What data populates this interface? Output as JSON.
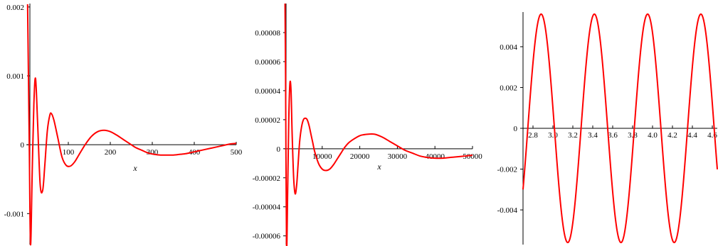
{
  "chart_data": [
    {
      "type": "line",
      "title": "",
      "xlabel": "x",
      "ylabel": "",
      "xlim": [
        0,
        500
      ],
      "ylim": [
        -0.00145,
        0.00205
      ],
      "grid": false,
      "legend": "none",
      "line_color": "#ff0000",
      "x_ticks": [
        100,
        200,
        300,
        400,
        500
      ],
      "x_tick_labels": [
        "100",
        "200",
        "300",
        "400",
        "500"
      ],
      "y_ticks": [
        0.002,
        0.001,
        0,
        -0.001
      ],
      "y_tick_labels": [
        "0.002",
        "0.001",
        "0",
        "-0.001"
      ],
      "series": [
        {
          "x": [
            3,
            7,
            10,
            14,
            18,
            22,
            27,
            33,
            39,
            44,
            50,
            56,
            60,
            66,
            75,
            85,
            95,
            105,
            115,
            125,
            140,
            155,
            170,
            185,
            200,
            215,
            230,
            245,
            260,
            275,
            290,
            305,
            320,
            335,
            350,
            365,
            380,
            395,
            410,
            425,
            440,
            455,
            470,
            485,
            500
          ],
          "y": [
            0.00204,
            0.0,
            -0.00145,
            -0.0004,
            0.0006,
            0.00096,
            0.0003,
            -0.00058,
            -0.00066,
            -0.0003,
            0.0002,
            0.00043,
            0.00045,
            0.00035,
            0.0001,
            -0.00018,
            -0.0003,
            -0.00031,
            -0.00025,
            -0.00015,
            0.0,
            0.00012,
            0.00019,
            0.00021,
            0.00019,
            0.00014,
            8e-05,
            2e-05,
            -4e-05,
            -8e-05,
            -0.00012,
            -0.00014,
            -0.00015,
            -0.00015,
            -0.00015,
            -0.00014,
            -0.00013,
            -0.00011,
            -9e-05,
            -7e-05,
            -5e-05,
            -3e-05,
            -1e-05,
            1e-05,
            2e-05
          ]
        }
      ]
    },
    {
      "type": "line",
      "title": "",
      "xlabel": "x",
      "ylabel": "",
      "xlim": [
        0,
        50000
      ],
      "ylim": [
        -6.6e-05,
        0.0001
      ],
      "grid": false,
      "legend": "none",
      "line_color": "#ff0000",
      "x_ticks": [
        10000,
        20000,
        30000,
        40000,
        50000
      ],
      "x_tick_labels": [
        "10000",
        "20000",
        "30000",
        "40000",
        "50000"
      ],
      "y_ticks": [
        8e-05,
        6e-05,
        4e-05,
        2e-05,
        0,
        -2e-05,
        -4e-05,
        -6e-05
      ],
      "y_tick_labels": [
        "0.00008",
        "0.00006",
        "0.00004",
        "0.00002",
        "0",
        "-0.00002",
        "-0.00004",
        "-0.00006"
      ],
      "series": [
        {
          "x": [
            100,
            250,
            500,
            800,
            1100,
            1400,
            1700,
            2000,
            2400,
            2800,
            3200,
            3600,
            4000,
            4500,
            5000,
            5500,
            6000,
            6500,
            7000,
            7500,
            8000,
            9000,
            10000,
            11000,
            12000,
            13000,
            14000,
            15000,
            16000,
            17000,
            18000,
            20000,
            22000,
            24000,
            26000,
            28000,
            30000,
            32000,
            34000,
            36000,
            38000,
            40000,
            42000,
            44000,
            46000,
            48000,
            50000
          ],
          "y": [
            0.0001,
            5e-05,
            -6.6e-05,
            -3e-05,
            2e-05,
            4.5e-05,
            4e-05,
            1e-05,
            -2e-05,
            -3.1e-05,
            -2.5e-05,
            -1e-05,
            5e-06,
            1.5e-05,
            2e-05,
            2.1e-05,
            2e-05,
            1.6e-05,
            1e-05,
            4e-06,
            -2e-06,
            -1e-05,
            -1.4e-05,
            -1.5e-05,
            -1.4e-05,
            -1.1e-05,
            -7e-06,
            -3e-06,
            1e-06,
            4e-06,
            6e-06,
            9e-06,
            1e-05,
            1e-05,
            8e-06,
            5e-06,
            2e-06,
            -1e-06,
            -3e-06,
            -5e-06,
            -6e-06,
            -6.5e-06,
            -6.5e-06,
            -6e-06,
            -5.5e-06,
            -5e-06,
            -4.5e-06
          ]
        }
      ]
    },
    {
      "type": "line",
      "title": "",
      "xlabel": "",
      "ylabel": "",
      "xlim": [
        2.7,
        4.65
      ],
      "ylim": [
        -0.0057,
        0.0057
      ],
      "grid": false,
      "legend": "none",
      "line_color": "#ff0000",
      "x_ticks": [
        2.8,
        3.0,
        3.2,
        3.4,
        3.6,
        3.8,
        4.0,
        4.2,
        4.4,
        4.6
      ],
      "x_tick_labels": [
        "2.8",
        "3.0",
        "3.2",
        "3.4",
        "3.6",
        "3.8",
        "4.0",
        "4.2",
        "4.4",
        "4.6"
      ],
      "y_ticks": [
        0.004,
        0.002,
        0,
        -0.002,
        -0.004
      ],
      "y_tick_labels": [
        "0.004",
        "0.002",
        "0",
        "-0.002",
        "-0.004"
      ],
      "series": [
        {
          "function": "0.0056*sin(2*pi*(x-2.748)/0.5345)",
          "amplitude": 0.0056,
          "period": 0.5345,
          "phase_zero_x": 2.748,
          "x_range": [
            2.7,
            4.65
          ]
        }
      ]
    }
  ]
}
